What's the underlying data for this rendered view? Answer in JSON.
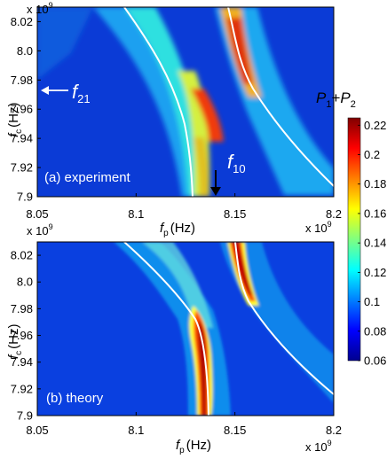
{
  "colorbar": {
    "title_p1": "P",
    "title_sub1": "1",
    "title_plus": "+",
    "title_p2": "P",
    "title_sub2": "2",
    "ticks": [
      "0.22",
      "0.2",
      "0.18",
      "0.16",
      "0.14",
      "0.12",
      "0.1",
      "0.08",
      "0.06"
    ],
    "range": [
      0.06,
      0.225
    ],
    "colormap": "jet"
  },
  "chart_data": [
    {
      "type": "heatmap",
      "panel_label": "(a)  experiment",
      "xlabel_var": "f",
      "xlabel_sub": "p",
      "xlabel_unit": "(Hz)",
      "ylabel_var": "f",
      "ylabel_sub": "c",
      "ylabel_unit": "(Hz)",
      "x_multiplier": "x 10",
      "x_multiplier_exp": "9",
      "y_multiplier": "x 10",
      "y_multiplier_exp": "9",
      "x_ticks": [
        "8.05",
        "8.1",
        "8.15",
        "8.2"
      ],
      "y_ticks": [
        "8.02",
        "8.0",
        "7.98",
        "7.96",
        "7.94",
        "7.92",
        "7.9"
      ],
      "xlim": [
        8.05,
        8.2
      ],
      "ylim": [
        7.9,
        8.03
      ],
      "annotations": {
        "f21_var": "f",
        "f21_sub": "21",
        "f21_y": 7.976,
        "f10_var": "f",
        "f10_sub": "10",
        "f10_x": 8.1345
      },
      "resonance_upper_branch": [
        [
          8.143,
          8.03
        ],
        [
          8.146,
          8.0
        ],
        [
          8.152,
          7.98
        ],
        [
          8.17,
          7.95
        ],
        [
          8.2,
          7.91
        ]
      ],
      "resonance_lower_branch": [
        [
          8.08,
          8.03
        ],
        [
          8.1,
          8.0
        ],
        [
          8.12,
          7.97
        ],
        [
          8.128,
          7.94
        ],
        [
          8.131,
          7.9
        ]
      ],
      "peak_value": 0.22,
      "background_value": 0.07
    },
    {
      "type": "heatmap",
      "panel_label": "(b)  theory",
      "xlabel_var": "f",
      "xlabel_sub": "p",
      "xlabel_unit": "(Hz)",
      "ylabel_var": "f",
      "ylabel_sub": "c",
      "ylabel_unit": "(Hz)",
      "x_multiplier": "x 10",
      "x_multiplier_exp": "9",
      "y_multiplier": "x 10",
      "y_multiplier_exp": "9",
      "x_ticks": [
        "8.05",
        "8.1",
        "8.15",
        "8.2"
      ],
      "y_ticks": [
        "8.02",
        "8.0",
        "7.98",
        "7.96",
        "7.94",
        "7.92",
        "7.9"
      ],
      "xlim": [
        8.05,
        8.2
      ],
      "ylim": [
        7.9,
        8.03
      ],
      "resonance_upper_branch": [
        [
          8.143,
          8.03
        ],
        [
          8.146,
          8.0
        ],
        [
          8.152,
          7.98
        ],
        [
          8.17,
          7.95
        ],
        [
          8.2,
          7.91
        ]
      ],
      "resonance_lower_branch": [
        [
          8.08,
          8.03
        ],
        [
          8.1,
          8.0
        ],
        [
          8.12,
          7.97
        ],
        [
          8.128,
          7.94
        ],
        [
          8.131,
          7.9
        ]
      ],
      "peak_value": 0.22,
      "background_value": 0.07
    }
  ]
}
